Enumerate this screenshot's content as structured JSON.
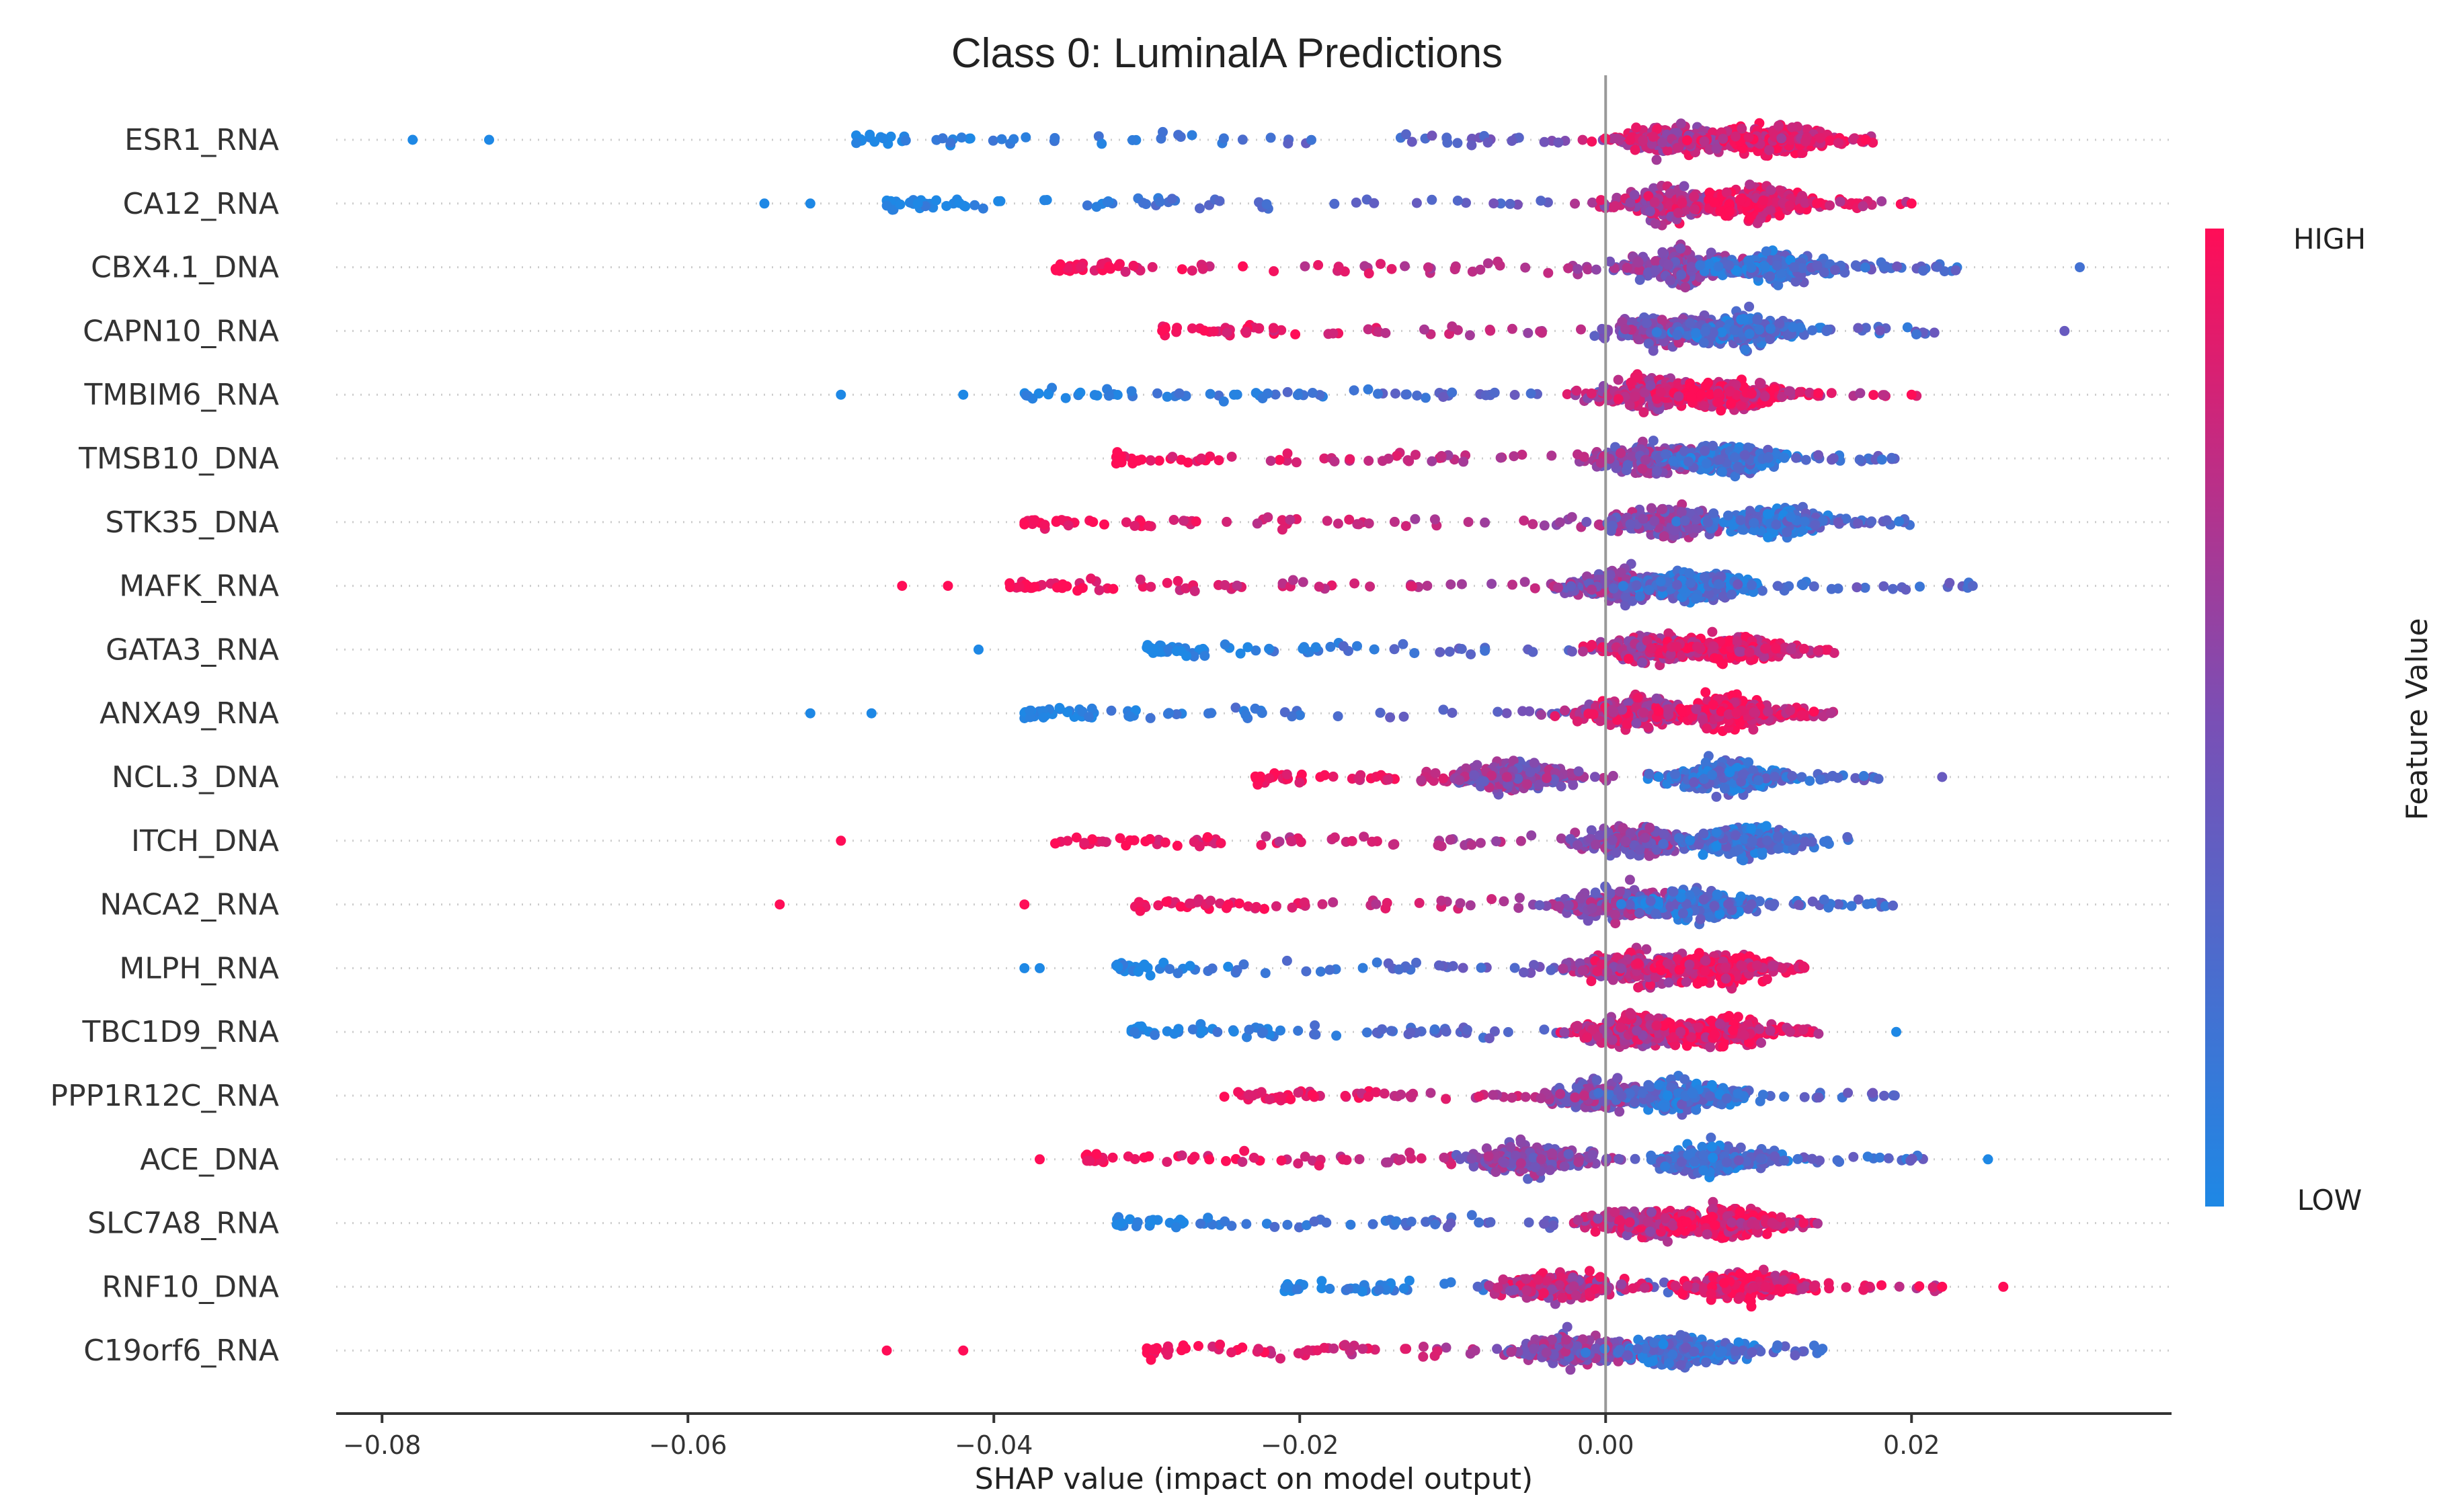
{
  "chart_data": {
    "type": "scatter",
    "subtype": "shap-beeswarm",
    "title": "Class 0: LuminalA Predictions",
    "xlabel": "SHAP value (impact on model output)",
    "ylabel": "",
    "xlim": [
      -0.083,
      0.037
    ],
    "xticks": [
      -0.08,
      -0.06,
      -0.04,
      -0.02,
      0.0,
      0.02
    ],
    "xtick_labels": [
      "−0.08",
      "−0.06",
      "−0.04",
      "−0.02",
      "0.00",
      "0.02"
    ],
    "colorbar": {
      "label": "Feature Value",
      "high_label": "HIGH",
      "low_label": "LOW",
      "high_color": "#ff0d57",
      "low_color": "#1e88e5"
    },
    "features": [
      {
        "name": "ESR1_RNA",
        "left_tail_color": "low",
        "outliers": [
          {
            "x": -0.078,
            "c": 0
          },
          {
            "x": -0.073,
            "c": 0
          },
          {
            "x": 0.017,
            "c": 1
          }
        ],
        "min": -0.049,
        "max": 0.018,
        "peaks": [
          0.004,
          0.011
        ]
      },
      {
        "name": "CA12_RNA",
        "left_tail_color": "low",
        "outliers": [
          {
            "x": -0.055,
            "c": 0
          },
          {
            "x": -0.052,
            "c": 0
          },
          {
            "x": 0.02,
            "c": 1
          }
        ],
        "min": -0.047,
        "max": 0.02,
        "peaks": [
          0.004,
          0.01
        ]
      },
      {
        "name": "CBX4.1_DNA",
        "left_tail_color": "high",
        "outliers": [
          {
            "x": 0.031,
            "c": 0.2
          }
        ],
        "min": -0.036,
        "max": 0.023,
        "peaks": [
          0.005,
          0.011
        ]
      },
      {
        "name": "CAPN10_RNA",
        "left_tail_color": "high",
        "outliers": [
          {
            "x": 0.03,
            "c": 0.4
          }
        ],
        "min": -0.029,
        "max": 0.022,
        "peaks": [
          0.004,
          0.009
        ]
      },
      {
        "name": "TMBIM6_RNA",
        "left_tail_color": "low",
        "outliers": [
          {
            "x": -0.05,
            "c": 0
          },
          {
            "x": -0.042,
            "c": 0
          },
          {
            "x": 0.02,
            "c": 1
          }
        ],
        "min": -0.038,
        "max": 0.021,
        "peaks": [
          0.003,
          0.008
        ]
      },
      {
        "name": "TMSB10_DNA",
        "left_tail_color": "high",
        "outliers": [],
        "min": -0.032,
        "max": 0.019,
        "peaks": [
          0.003,
          0.008
        ]
      },
      {
        "name": "STK35_DNA",
        "left_tail_color": "high",
        "outliers": [],
        "min": -0.038,
        "max": 0.02,
        "peaks": [
          0.004,
          0.011
        ]
      },
      {
        "name": "MAFK_RNA",
        "left_tail_color": "high",
        "outliers": [
          {
            "x": -0.046,
            "c": 1
          },
          {
            "x": -0.043,
            "c": 1
          },
          {
            "x": 0.024,
            "c": 0.3
          }
        ],
        "min": -0.039,
        "max": 0.024,
        "peaks": [
          0.001,
          0.006
        ]
      },
      {
        "name": "GATA3_RNA",
        "left_tail_color": "low",
        "outliers": [
          {
            "x": -0.041,
            "c": 0
          }
        ],
        "min": -0.03,
        "max": 0.015,
        "peaks": [
          0.003,
          0.008
        ]
      },
      {
        "name": "ANXA9_RNA",
        "left_tail_color": "low",
        "outliers": [
          {
            "x": -0.052,
            "c": 0
          },
          {
            "x": -0.048,
            "c": 0
          }
        ],
        "min": -0.038,
        "max": 0.015,
        "peaks": [
          0.002,
          0.008
        ]
      },
      {
        "name": "NCL.3_DNA",
        "left_tail_color": "high",
        "outliers": [
          {
            "x": 0.022,
            "c": 0.4
          }
        ],
        "min": -0.023,
        "max": 0.018,
        "peaks": [
          -0.006,
          0.008
        ]
      },
      {
        "name": "ITCH_DNA",
        "left_tail_color": "high",
        "outliers": [
          {
            "x": -0.05,
            "c": 1
          }
        ],
        "min": -0.036,
        "max": 0.016,
        "peaks": [
          0.002,
          0.009
        ]
      },
      {
        "name": "NACA2_RNA",
        "left_tail_color": "high",
        "outliers": [
          {
            "x": -0.054,
            "c": 1
          },
          {
            "x": -0.038,
            "c": 1
          }
        ],
        "min": -0.031,
        "max": 0.019,
        "peaks": [
          0.001,
          0.006
        ]
      },
      {
        "name": "MLPH_RNA",
        "left_tail_color": "low",
        "outliers": [
          {
            "x": -0.038,
            "c": 0
          },
          {
            "x": -0.037,
            "c": 0
          }
        ],
        "min": -0.032,
        "max": 0.013,
        "peaks": [
          0.002,
          0.007
        ]
      },
      {
        "name": "TBC1D9_RNA",
        "left_tail_color": "low",
        "outliers": [
          {
            "x": 0.019,
            "c": 0
          }
        ],
        "min": -0.031,
        "max": 0.014,
        "peaks": [
          0.002,
          0.007
        ]
      },
      {
        "name": "PPP1R12C_RNA",
        "left_tail_color": "high",
        "outliers": [],
        "min": -0.025,
        "max": 0.02,
        "peaks": [
          0.0,
          0.005
        ]
      },
      {
        "name": "ACE_DNA",
        "left_tail_color": "high",
        "outliers": [
          {
            "x": -0.037,
            "c": 1
          },
          {
            "x": 0.025,
            "c": 0
          }
        ],
        "min": -0.034,
        "max": 0.021,
        "peaks": [
          -0.005,
          0.007
        ]
      },
      {
        "name": "SLC7A8_RNA",
        "left_tail_color": "low",
        "outliers": [],
        "min": -0.032,
        "max": 0.014,
        "peaks": [
          0.003,
          0.008
        ]
      },
      {
        "name": "RNF10_DNA",
        "left_tail_color": "low",
        "outliers": [
          {
            "x": 0.026,
            "c": 1
          },
          {
            "x": 0.022,
            "c": 1
          }
        ],
        "min": -0.021,
        "max": 0.022,
        "peaks": [
          -0.003,
          0.009
        ]
      },
      {
        "name": "C19orf6_RNA",
        "left_tail_color": "high",
        "outliers": [
          {
            "x": -0.047,
            "c": 1
          },
          {
            "x": -0.042,
            "c": 1
          }
        ],
        "min": -0.03,
        "max": 0.015,
        "peaks": [
          -0.002,
          0.005
        ]
      }
    ]
  }
}
